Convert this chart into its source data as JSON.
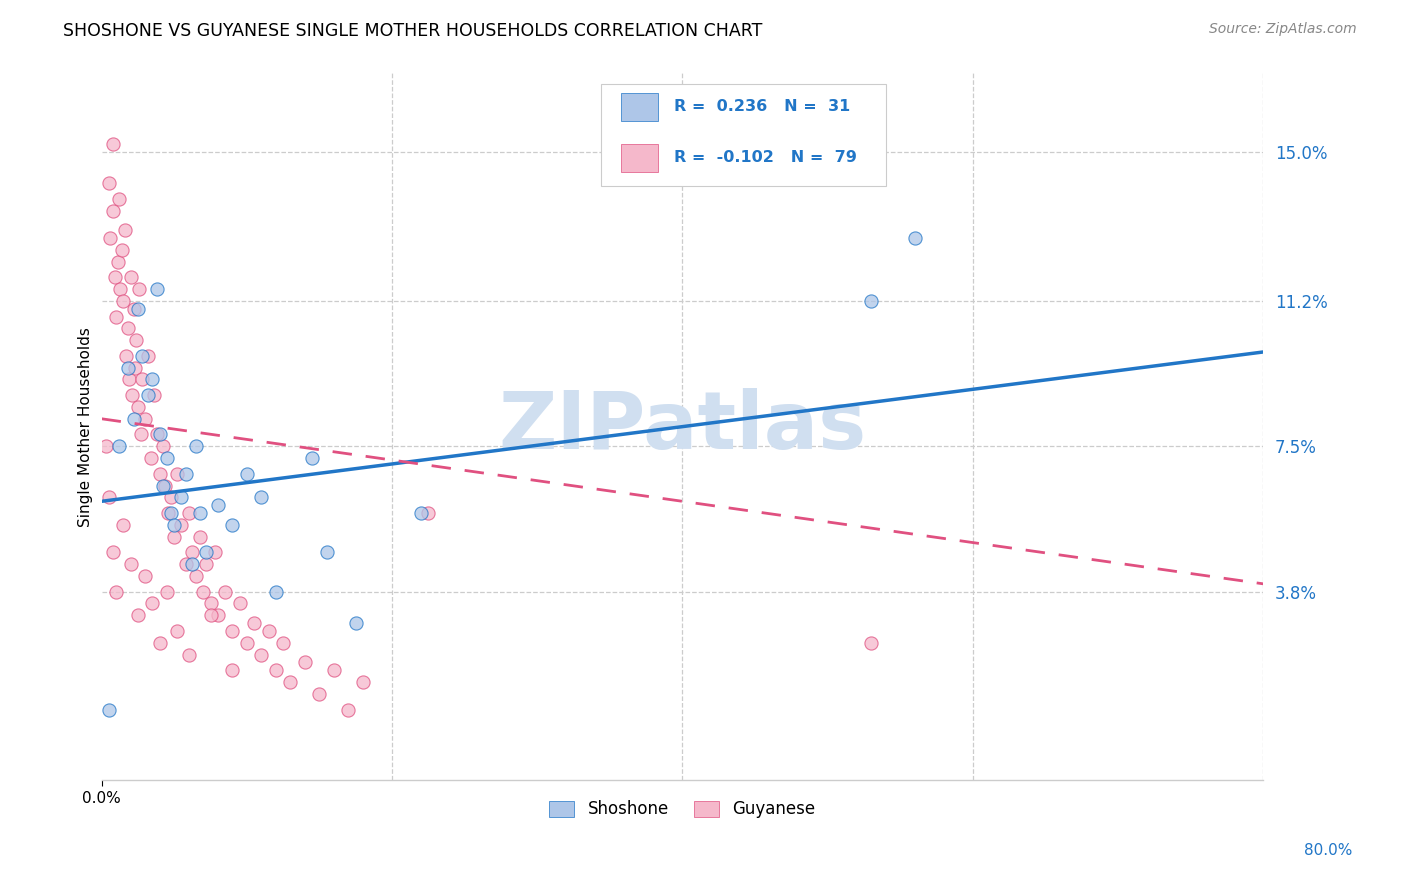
{
  "title": "SHOSHONE VS GUYANESE SINGLE MOTHER HOUSEHOLDS CORRELATION CHART",
  "source": "Source: ZipAtlas.com",
  "ylabel": "Single Mother Households",
  "ytick_labels": [
    "15.0%",
    "11.2%",
    "7.5%",
    "3.8%"
  ],
  "ytick_values": [
    0.15,
    0.112,
    0.075,
    0.038
  ],
  "xlim": [
    0.0,
    0.8
  ],
  "ylim": [
    -0.01,
    0.17
  ],
  "shoshone_R": 0.236,
  "shoshone_N": 31,
  "guyanese_R": -0.102,
  "guyanese_N": 79,
  "shoshone_color": "#aec6e8",
  "guyanese_color": "#f5b8cb",
  "shoshone_line_color": "#2176c7",
  "guyanese_line_color": "#e05080",
  "watermark": "ZIPatlas",
  "watermark_color": "#d0dff0",
  "shoshone_x": [
    0.005,
    0.012,
    0.018,
    0.022,
    0.025,
    0.028,
    0.032,
    0.035,
    0.038,
    0.04,
    0.042,
    0.045,
    0.048,
    0.05,
    0.055,
    0.058,
    0.062,
    0.065,
    0.068,
    0.072,
    0.08,
    0.09,
    0.1,
    0.11,
    0.12,
    0.145,
    0.155,
    0.175,
    0.22,
    0.53,
    0.56
  ],
  "shoshone_y": [
    0.008,
    0.075,
    0.095,
    0.082,
    0.11,
    0.098,
    0.088,
    0.092,
    0.115,
    0.078,
    0.065,
    0.072,
    0.058,
    0.055,
    0.062,
    0.068,
    0.045,
    0.075,
    0.058,
    0.048,
    0.06,
    0.055,
    0.068,
    0.062,
    0.038,
    0.072,
    0.048,
    0.03,
    0.058,
    0.112,
    0.128
  ],
  "guyanese_x": [
    0.003,
    0.005,
    0.006,
    0.008,
    0.008,
    0.009,
    0.01,
    0.011,
    0.012,
    0.013,
    0.014,
    0.015,
    0.016,
    0.017,
    0.018,
    0.019,
    0.02,
    0.021,
    0.022,
    0.023,
    0.024,
    0.025,
    0.026,
    0.027,
    0.028,
    0.03,
    0.032,
    0.034,
    0.036,
    0.038,
    0.04,
    0.042,
    0.044,
    0.046,
    0.048,
    0.05,
    0.052,
    0.055,
    0.058,
    0.06,
    0.062,
    0.065,
    0.068,
    0.07,
    0.072,
    0.075,
    0.078,
    0.08,
    0.085,
    0.09,
    0.095,
    0.1,
    0.105,
    0.11,
    0.115,
    0.12,
    0.125,
    0.13,
    0.14,
    0.15,
    0.16,
    0.17,
    0.18,
    0.005,
    0.008,
    0.01,
    0.015,
    0.02,
    0.025,
    0.03,
    0.035,
    0.04,
    0.045,
    0.052,
    0.06,
    0.075,
    0.09,
    0.225,
    0.53
  ],
  "guyanese_y": [
    0.075,
    0.142,
    0.128,
    0.135,
    0.152,
    0.118,
    0.108,
    0.122,
    0.138,
    0.115,
    0.125,
    0.112,
    0.13,
    0.098,
    0.105,
    0.092,
    0.118,
    0.088,
    0.11,
    0.095,
    0.102,
    0.085,
    0.115,
    0.078,
    0.092,
    0.082,
    0.098,
    0.072,
    0.088,
    0.078,
    0.068,
    0.075,
    0.065,
    0.058,
    0.062,
    0.052,
    0.068,
    0.055,
    0.045,
    0.058,
    0.048,
    0.042,
    0.052,
    0.038,
    0.045,
    0.035,
    0.048,
    0.032,
    0.038,
    0.028,
    0.035,
    0.025,
    0.03,
    0.022,
    0.028,
    0.018,
    0.025,
    0.015,
    0.02,
    0.012,
    0.018,
    0.008,
    0.015,
    0.062,
    0.048,
    0.038,
    0.055,
    0.045,
    0.032,
    0.042,
    0.035,
    0.025,
    0.038,
    0.028,
    0.022,
    0.032,
    0.018,
    0.058,
    0.025
  ],
  "shoshone_line_pts": [
    [
      0.0,
      0.061
    ],
    [
      0.8,
      0.099
    ]
  ],
  "guyanese_line_pts": [
    [
      0.0,
      0.082
    ],
    [
      0.8,
      0.04
    ]
  ]
}
